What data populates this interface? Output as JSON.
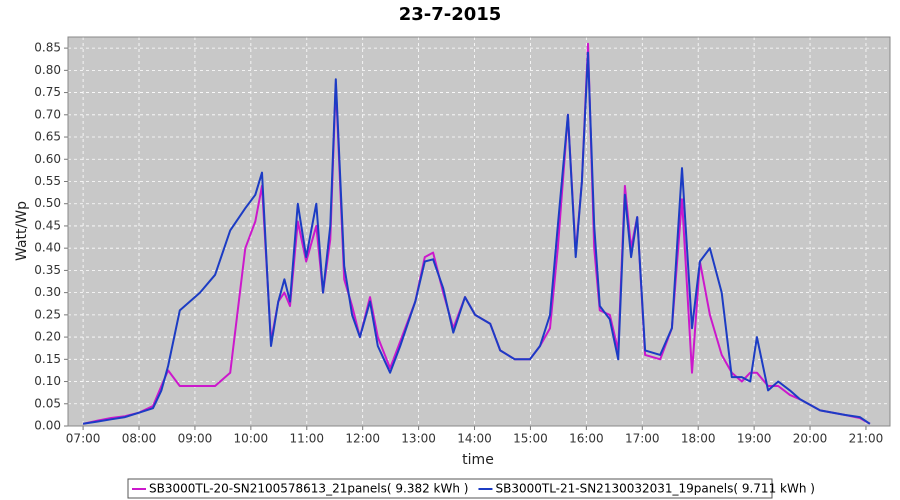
{
  "chart_data": {
    "type": "line",
    "title": "23-7-2015",
    "xlabel": "time",
    "ylabel": "Watt/Wp",
    "grid": true,
    "legend": "bottom",
    "xlim": [
      6.73,
      21.43
    ],
    "ylim": [
      0,
      0.875
    ],
    "xticks": [
      {
        "value": 7,
        "label": "07:00"
      },
      {
        "value": 8,
        "label": "08:00"
      },
      {
        "value": 9,
        "label": "09:00"
      },
      {
        "value": 10,
        "label": "10:00"
      },
      {
        "value": 11,
        "label": "11:00"
      },
      {
        "value": 12,
        "label": "12:00"
      },
      {
        "value": 13,
        "label": "13:00"
      },
      {
        "value": 14,
        "label": "14:00"
      },
      {
        "value": 15,
        "label": "15:00"
      },
      {
        "value": 16,
        "label": "16:00"
      },
      {
        "value": 17,
        "label": "17:00"
      },
      {
        "value": 18,
        "label": "18:00"
      },
      {
        "value": 19,
        "label": "19:00"
      },
      {
        "value": 20,
        "label": "20:00"
      },
      {
        "value": 21,
        "label": "21:00"
      }
    ],
    "yticks": [
      {
        "value": 0,
        "label": "0.00"
      },
      {
        "value": 0.05,
        "label": "0.05"
      },
      {
        "value": 0.1,
        "label": "0.10"
      },
      {
        "value": 0.15,
        "label": "0.15"
      },
      {
        "value": 0.2,
        "label": "0.20"
      },
      {
        "value": 0.25,
        "label": "0.25"
      },
      {
        "value": 0.3,
        "label": "0.30"
      },
      {
        "value": 0.35,
        "label": "0.35"
      },
      {
        "value": 0.4,
        "label": "0.40"
      },
      {
        "value": 0.45,
        "label": "0.45"
      },
      {
        "value": 0.5,
        "label": "0.50"
      },
      {
        "value": 0.55,
        "label": "0.55"
      },
      {
        "value": 0.6,
        "label": "0.60"
      },
      {
        "value": 0.65,
        "label": "0.65"
      },
      {
        "value": 0.7,
        "label": "0.70"
      },
      {
        "value": 0.75,
        "label": "0.75"
      },
      {
        "value": 0.8,
        "label": "0.80"
      },
      {
        "value": 0.85,
        "label": "0.85"
      }
    ],
    "x": [
      7.0,
      7.25,
      7.5,
      7.75,
      8.0,
      8.25,
      8.4,
      8.52,
      8.73,
      9.09,
      9.36,
      9.63,
      9.9,
      10.08,
      10.2,
      10.31,
      10.36,
      10.49,
      10.6,
      10.7,
      10.84,
      10.99,
      11.17,
      11.29,
      11.42,
      11.52,
      11.67,
      11.81,
      11.95,
      12.13,
      12.27,
      12.49,
      12.67,
      12.94,
      13.11,
      13.26,
      13.44,
      13.62,
      13.83,
      14.01,
      14.28,
      14.46,
      14.72,
      14.99,
      15.17,
      15.35,
      15.49,
      15.67,
      15.81,
      15.92,
      16.03,
      16.14,
      16.24,
      16.42,
      16.57,
      16.69,
      16.8,
      16.91,
      17.05,
      17.32,
      17.53,
      17.71,
      17.89,
      18.03,
      18.21,
      18.42,
      18.6,
      18.78,
      18.93,
      19.05,
      19.25,
      19.43,
      19.64,
      19.82,
      20.18,
      20.62,
      20.89,
      21.07
    ],
    "series": [
      {
        "name": "SB3000TL-20-SN2100578613_21panels( 9.382 kWh )",
        "color": "#cc18cc",
        "values": [
          0.005,
          0.012,
          0.018,
          0.022,
          0.03,
          0.045,
          0.09,
          0.125,
          0.09,
          0.09,
          0.09,
          0.12,
          0.4,
          0.46,
          0.54,
          0.3,
          0.19,
          0.28,
          0.3,
          0.27,
          0.46,
          0.37,
          0.45,
          0.3,
          0.42,
          0.77,
          0.33,
          0.27,
          0.2,
          0.29,
          0.2,
          0.13,
          0.19,
          0.28,
          0.38,
          0.39,
          0.3,
          0.22,
          0.29,
          0.25,
          0.23,
          0.17,
          0.15,
          0.15,
          0.18,
          0.22,
          0.4,
          0.7,
          0.39,
          0.55,
          0.86,
          0.4,
          0.26,
          0.25,
          0.17,
          0.54,
          0.4,
          0.47,
          0.16,
          0.15,
          0.22,
          0.51,
          0.12,
          0.37,
          0.25,
          0.16,
          0.12,
          0.1,
          0.12,
          0.12,
          0.09,
          0.09,
          0.07,
          0.06,
          0.035,
          0.025,
          0.018,
          0.005
        ]
      },
      {
        "name": "SB3000TL-21-SN2130032031_19panels( 9.711 kWh )",
        "color": "#1c3cc4",
        "values": [
          0.005,
          0.01,
          0.015,
          0.02,
          0.03,
          0.04,
          0.08,
          0.135,
          0.26,
          0.3,
          0.34,
          0.44,
          0.49,
          0.52,
          0.57,
          0.3,
          0.18,
          0.28,
          0.33,
          0.28,
          0.5,
          0.38,
          0.5,
          0.3,
          0.45,
          0.78,
          0.36,
          0.25,
          0.2,
          0.28,
          0.18,
          0.12,
          0.18,
          0.28,
          0.37,
          0.375,
          0.31,
          0.21,
          0.29,
          0.25,
          0.23,
          0.17,
          0.15,
          0.15,
          0.18,
          0.25,
          0.45,
          0.7,
          0.38,
          0.55,
          0.84,
          0.45,
          0.27,
          0.24,
          0.15,
          0.52,
          0.38,
          0.47,
          0.17,
          0.16,
          0.22,
          0.58,
          0.22,
          0.37,
          0.4,
          0.3,
          0.11,
          0.11,
          0.1,
          0.2,
          0.08,
          0.1,
          0.08,
          0.06,
          0.035,
          0.025,
          0.02,
          0.005
        ]
      }
    ]
  }
}
